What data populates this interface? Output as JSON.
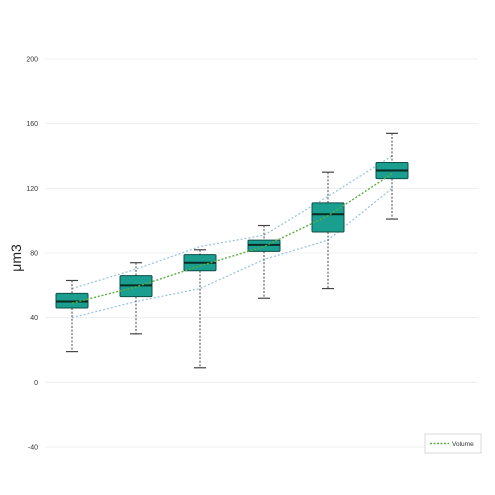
{
  "chart_data": {
    "type": "box",
    "ylabel": "μm3",
    "xlabel": "",
    "title": "",
    "ylim": [
      -50,
      220
    ],
    "y_ticks": [
      200,
      160,
      120,
      80,
      40,
      0,
      -40
    ],
    "grid": "horizontal",
    "legend": {
      "placement": "bottom-right",
      "entries": [
        "Volume"
      ]
    },
    "colors": {
      "box_fill": "#1a9e8f",
      "box_stroke": "#0d4f46",
      "median": "#0a2a24",
      "whisker": "#444444",
      "mean_line": "#5cae45",
      "envelope": "#9ec4e6",
      "grid": "#ececec"
    },
    "boxes": [
      {
        "min": 19,
        "q1": 46,
        "median": 50,
        "q3": 55,
        "max": 63,
        "mean": 49
      },
      {
        "min": 30,
        "q1": 53,
        "median": 60,
        "q3": 66,
        "max": 74,
        "mean": 59
      },
      {
        "min": 9,
        "q1": 69,
        "median": 74,
        "q3": 79,
        "max": 82,
        "mean": 72
      },
      {
        "min": 52,
        "q1": 81,
        "median": 85,
        "q3": 88,
        "max": 97,
        "mean": 84
      },
      {
        "min": 58,
        "q1": 93,
        "median": 104,
        "q3": 111,
        "max": 130,
        "mean": 103
      },
      {
        "min": 101,
        "q1": 126,
        "median": 131,
        "q3": 136,
        "max": 154,
        "mean": 129
      }
    ],
    "series": [
      {
        "name": "Volume",
        "values": [
          49,
          59,
          72,
          84,
          103,
          129
        ]
      }
    ],
    "envelope_upper": [
      58,
      70,
      84,
      91,
      115,
      140
    ],
    "envelope_lower": [
      40,
      50,
      58,
      76,
      88,
      120
    ]
  }
}
